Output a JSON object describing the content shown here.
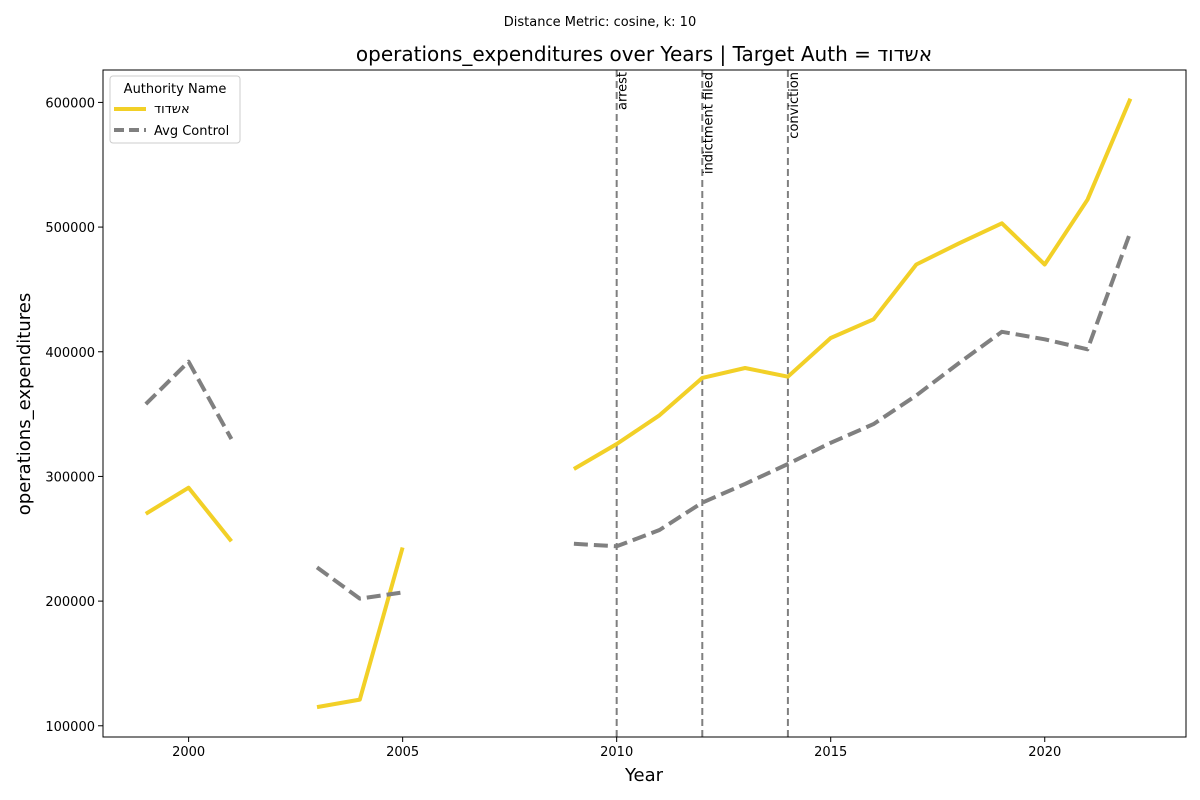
{
  "chart_data": {
    "type": "line",
    "suptitle": "Distance Metric: cosine, k: 10",
    "title": "operations_expenditures over Years | Target Auth = אשדוד",
    "xlabel": "Year",
    "ylabel": "operations_expenditures",
    "xlim": [
      1998,
      2023.3
    ],
    "ylim": [
      91000,
      626000
    ],
    "xticks": [
      2000,
      2005,
      2010,
      2015,
      2020
    ],
    "yticks": [
      100000,
      200000,
      300000,
      400000,
      500000,
      600000
    ],
    "grid": false,
    "legend": {
      "title": "Authority Name",
      "placement": "upper-left"
    },
    "series": [
      {
        "name": "אשדוד",
        "color": "#f2d027",
        "dash": "solid",
        "x": [
          1999,
          2000,
          2001,
          2002,
          2003,
          2004,
          2005,
          2006,
          2007,
          2008,
          2009,
          2010,
          2011,
          2012,
          2013,
          2014,
          2015,
          2016,
          2017,
          2018,
          2019,
          2020,
          2021,
          2022
        ],
        "y": [
          270000,
          291000,
          248000,
          null,
          115000,
          121000,
          243000,
          null,
          null,
          null,
          306000,
          326000,
          349000,
          379000,
          387000,
          380000,
          411000,
          426000,
          470000,
          487000,
          503000,
          470000,
          522000,
          603000
        ]
      },
      {
        "name": "Avg Control",
        "color": "#808080",
        "dash": "dashed",
        "x": [
          1999,
          2000,
          2001,
          2002,
          2003,
          2004,
          2005,
          2006,
          2007,
          2008,
          2009,
          2010,
          2011,
          2012,
          2013,
          2014,
          2015,
          2016,
          2017,
          2018,
          2019,
          2020,
          2021,
          2022
        ],
        "y": [
          358000,
          392000,
          330000,
          null,
          227000,
          202000,
          207000,
          null,
          null,
          null,
          246000,
          244000,
          257000,
          279000,
          294000,
          310000,
          327000,
          342000,
          365000,
          391000,
          416000,
          410000,
          402000,
          496000
        ]
      }
    ],
    "events": [
      {
        "x": 2010,
        "label": "arrest"
      },
      {
        "x": 2012,
        "label": "indictment filed"
      },
      {
        "x": 2014,
        "label": "conviction"
      }
    ]
  }
}
